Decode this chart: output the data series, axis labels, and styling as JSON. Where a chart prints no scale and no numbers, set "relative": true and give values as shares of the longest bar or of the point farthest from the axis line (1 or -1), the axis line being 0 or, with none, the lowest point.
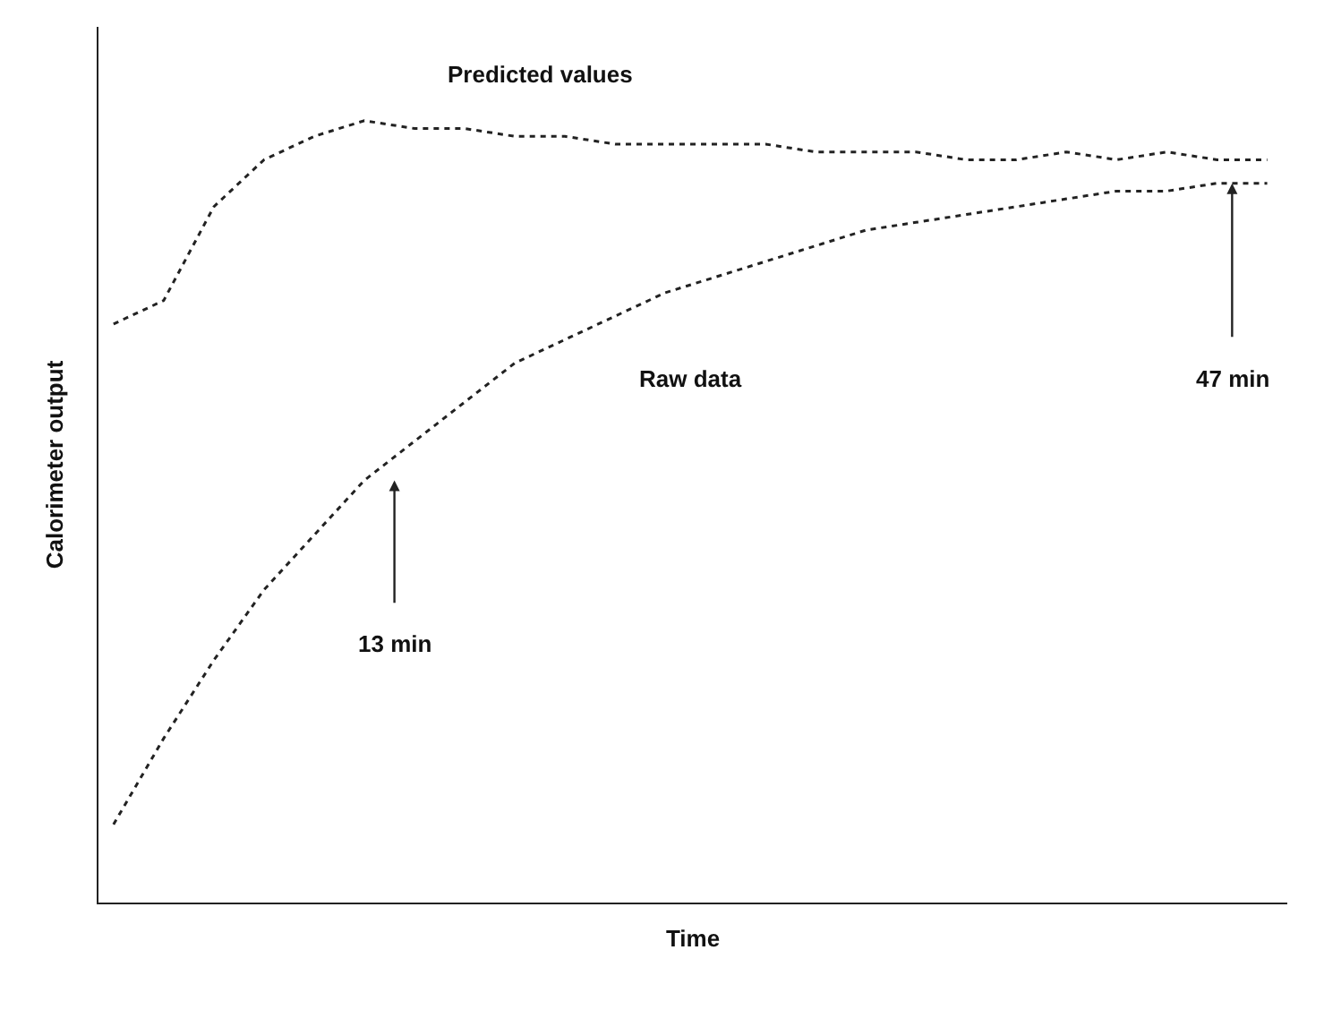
{
  "chart_data": {
    "type": "line",
    "line_style": "dotted",
    "relative": true,
    "xlabel": "Time",
    "ylabel": "Calorimeter output",
    "categories": [
      null,
      null,
      null,
      null,
      null,
      null,
      null,
      null,
      null,
      null,
      null,
      null,
      null,
      null,
      null,
      null,
      null,
      null,
      null,
      null,
      null,
      null,
      null,
      null
    ],
    "series": [
      {
        "color": "#222222",
        "values": [
          0.74,
          0.77,
          0.89,
          0.95,
          0.98,
          1.0,
          0.99,
          0.99,
          0.98,
          0.98,
          0.97,
          0.97,
          0.97,
          0.97,
          0.96,
          0.96,
          0.96,
          0.95,
          0.95,
          0.96,
          0.95,
          0.96,
          0.95,
          0.95
        ]
      },
      {
        "color": "#222222",
        "values": [
          0.1,
          0.21,
          0.31,
          0.4,
          0.47,
          0.54,
          0.59,
          0.64,
          0.69,
          0.72,
          0.75,
          0.78,
          0.8,
          0.82,
          0.84,
          0.86,
          0.87,
          0.88,
          0.89,
          0.9,
          0.91,
          0.91,
          0.92,
          0.92
        ]
      }
    ],
    "annotations": [
      "Predicted values",
      "Raw data",
      "13 min",
      "47 min"
    ],
    "legend": false,
    "tick_labels": false
  }
}
